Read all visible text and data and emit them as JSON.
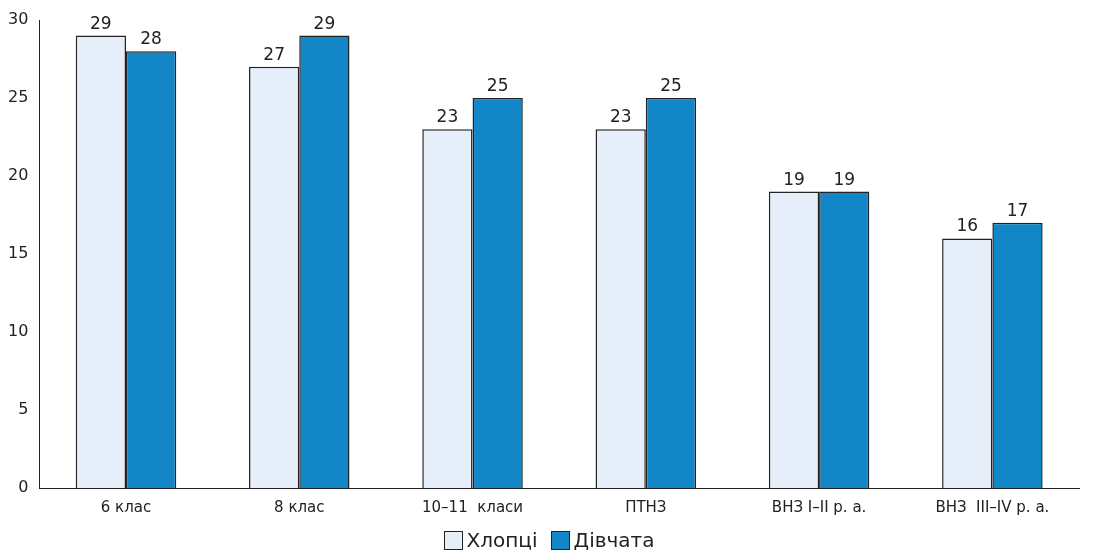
{
  "chart_data": {
    "type": "bar",
    "categories": [
      "6 клас",
      "8 клас",
      "10–11  класи",
      "ПТНЗ",
      "ВНЗ I–II р. а.",
      "ВНЗ  III–IV р. а."
    ],
    "series": [
      {
        "name": "Хлопці",
        "color": "#e6eef9",
        "values": [
          29,
          27,
          23,
          23,
          19,
          16
        ]
      },
      {
        "name": "Дівчата",
        "color": "#1386c8",
        "values": [
          28,
          29,
          25,
          25,
          19,
          17
        ]
      }
    ],
    "ylim": [
      0,
      30
    ],
    "yticks": [
      0,
      5,
      10,
      15,
      20,
      25,
      30
    ],
    "grid": false,
    "legend": "bottom",
    "data_labels": true
  }
}
